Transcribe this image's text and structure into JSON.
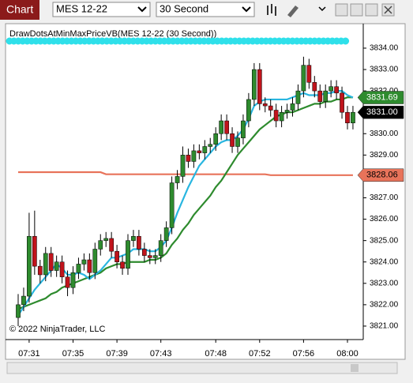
{
  "toolbar": {
    "title": "Chart",
    "instrument": "MES 12-22",
    "interval": "30 Second"
  },
  "chart_data": {
    "type": "candlestick",
    "indicator_label": "DrawDotsAtMinMaxPriceVB(MES 12-22 (30 Second))",
    "copyright": "© 2022 NinjaTrader, LLC",
    "up_color": "#2e8b2e",
    "down_color": "#c0141c",
    "categories": [
      null,
      null,
      "07:31",
      null,
      null,
      null,
      null,
      null,
      null,
      null,
      "07:35",
      null,
      null,
      null,
      null,
      null,
      null,
      null,
      "07:39",
      null,
      null,
      null,
      null,
      null,
      null,
      null,
      "07:43",
      null,
      null,
      null,
      null,
      null,
      null,
      null,
      null,
      null,
      "07:48",
      null,
      null,
      null,
      null,
      null,
      null,
      null,
      "07:52",
      null,
      null,
      null,
      null,
      null,
      null,
      null,
      "07:56",
      null,
      null,
      null,
      null,
      null,
      null,
      null,
      "08:00",
      null
    ],
    "open": [
      3821.4,
      3822.0,
      3822.4,
      3825.2,
      3823.8,
      3823.4,
      3824.4,
      3823.6,
      3824.0,
      3823.3,
      3822.8,
      3823.5,
      3823.9,
      3824.1,
      3823.5,
      3824.6,
      3825.0,
      3825.1,
      3824.5,
      3824.0,
      3823.7,
      3825.0,
      3825.2,
      3824.6,
      3824.3,
      3824.2,
      3824.3,
      3825.0,
      3825.6,
      3827.7,
      3828.0,
      3829.0,
      3828.7,
      3829.2,
      3829.1,
      3829.4,
      3829.5,
      3830.0,
      3830.6,
      3830.0,
      3829.4,
      3829.8,
      3830.6,
      3831.6,
      3833.0,
      3831.4,
      3831.3,
      3831.1,
      3830.6,
      3831.0,
      3831.1,
      3831.4,
      3832.0,
      3833.2,
      3832.4,
      3832.0,
      3831.5,
      3832.0,
      3832.2,
      3831.9,
      3831.0,
      3830.5
    ],
    "high": [
      3822.5,
      3822.8,
      3826.3,
      3826.4,
      3824.1,
      3824.7,
      3824.7,
      3824.3,
      3824.3,
      3823.6,
      3823.8,
      3824.2,
      3824.4,
      3824.4,
      3824.9,
      3825.3,
      3825.4,
      3825.4,
      3824.8,
      3824.3,
      3825.3,
      3825.5,
      3825.5,
      3824.9,
      3824.6,
      3824.6,
      3825.3,
      3825.9,
      3828.0,
      3828.3,
      3829.4,
      3829.3,
      3829.5,
      3829.5,
      3829.7,
      3829.8,
      3830.3,
      3830.9,
      3830.9,
      3830.3,
      3830.1,
      3830.9,
      3831.9,
      3833.3,
      3833.3,
      3831.7,
      3831.6,
      3831.4,
      3831.3,
      3831.4,
      3831.7,
      3832.3,
      3833.6,
      3833.5,
      3832.7,
      3832.3,
      3832.3,
      3832.5,
      3832.5,
      3832.2,
      3831.3,
      3831.3
    ],
    "low": [
      3821.0,
      3821.7,
      3822.1,
      3823.4,
      3823.0,
      3823.1,
      3823.3,
      3823.3,
      3823.0,
      3822.4,
      3822.5,
      3823.2,
      3823.6,
      3823.2,
      3823.2,
      3824.3,
      3824.7,
      3824.2,
      3823.7,
      3823.4,
      3823.4,
      3824.7,
      3824.3,
      3824.0,
      3823.9,
      3823.9,
      3824.0,
      3824.7,
      3825.3,
      3827.4,
      3827.7,
      3828.4,
      3828.4,
      3828.8,
      3828.8,
      3829.1,
      3829.2,
      3829.7,
      3829.7,
      3829.1,
      3829.1,
      3829.5,
      3830.3,
      3831.3,
      3831.1,
      3831.0,
      3830.8,
      3830.3,
      3830.3,
      3830.7,
      3830.8,
      3831.1,
      3831.7,
      3832.1,
      3831.7,
      3831.2,
      3831.2,
      3831.7,
      3831.6,
      3830.7,
      3830.2,
      3830.2
    ],
    "close": [
      3822.0,
      3822.4,
      3825.2,
      3823.8,
      3823.4,
      3824.4,
      3823.6,
      3824.0,
      3823.3,
      3822.8,
      3823.5,
      3823.9,
      3824.1,
      3823.5,
      3824.6,
      3825.0,
      3825.1,
      3824.5,
      3824.0,
      3823.7,
      3825.0,
      3825.2,
      3824.6,
      3824.3,
      3824.2,
      3824.3,
      3825.0,
      3825.6,
      3827.7,
      3828.0,
      3829.0,
      3828.7,
      3829.2,
      3829.1,
      3829.4,
      3829.5,
      3830.0,
      3830.6,
      3830.0,
      3829.4,
      3829.8,
      3830.6,
      3831.6,
      3833.0,
      3831.4,
      3831.3,
      3831.1,
      3830.6,
      3831.0,
      3831.1,
      3831.4,
      3832.0,
      3833.2,
      3832.4,
      3832.0,
      3831.5,
      3832.0,
      3832.2,
      3831.9,
      3831.0,
      3830.5,
      3831.0
    ],
    "lines": [
      {
        "color": "#e8735a",
        "values": [
          3828.2,
          3828.2,
          3828.2,
          3828.2,
          3828.2,
          3828.2,
          3828.2,
          3828.2,
          3828.2,
          3828.2,
          3828.2,
          3828.2,
          3828.2,
          3828.2,
          3828.2,
          3828.2,
          3828.1,
          3828.1,
          3828.1,
          3828.1,
          3828.1,
          3828.1,
          3828.1,
          3828.1,
          3828.1,
          3828.1,
          3828.1,
          3828.1,
          3828.1,
          3828.1,
          3828.1,
          3828.1,
          3828.1,
          3828.1,
          3828.1,
          3828.1,
          3828.1,
          3828.1,
          3828.1,
          3828.1,
          3828.1,
          3828.1,
          3828.1,
          3828.1,
          3828.1,
          3828.1,
          3828.06,
          3828.06,
          3828.06,
          3828.06,
          3828.06,
          3828.06,
          3828.06,
          3828.06,
          3828.06,
          3828.06,
          3828.06,
          3828.06,
          3828.06,
          3828.06,
          3828.06,
          3828.06
        ]
      },
      {
        "color": "#2e8b2e",
        "values": [
          3821.8,
          3821.9,
          3822.0,
          3822.1,
          3822.2,
          3822.3,
          3822.5,
          3822.6,
          3822.8,
          3822.9,
          3823.0,
          3823.1,
          3823.2,
          3823.3,
          3823.4,
          3823.5,
          3823.7,
          3823.8,
          3823.9,
          3823.9,
          3824.0,
          3824.0,
          3824.0,
          3824.0,
          3824.1,
          3824.1,
          3824.2,
          3824.4,
          3824.8,
          3825.1,
          3825.5,
          3825.8,
          3826.2,
          3826.5,
          3826.8,
          3827.1,
          3827.5,
          3827.8,
          3828.2,
          3828.6,
          3829.0,
          3829.3,
          3829.6,
          3829.9,
          3830.2,
          3830.4,
          3830.6,
          3830.8,
          3830.9,
          3831.0,
          3831.0,
          3831.1,
          3831.2,
          3831.3,
          3831.4,
          3831.4,
          3831.5,
          3831.5,
          3831.6,
          3831.6,
          3831.7,
          3831.7
        ]
      },
      {
        "color": "#29b6e0",
        "values": [
          3821.5,
          3821.9,
          3822.3,
          3822.7,
          3823.0,
          3823.3,
          3823.6,
          3823.9,
          3823.7,
          3823.4,
          3823.4,
          3823.5,
          3823.4,
          3823.2,
          3823.4,
          3823.6,
          3823.9,
          3824.2,
          3824.2,
          3824.3,
          3824.4,
          3824.6,
          3824.6,
          3824.6,
          3824.5,
          3824.5,
          3824.7,
          3825.0,
          3825.6,
          3826.3,
          3826.9,
          3827.5,
          3828.0,
          3828.5,
          3828.8,
          3829.1,
          3829.4,
          3829.6,
          3829.7,
          3829.7,
          3829.9,
          3830.2,
          3830.7,
          3831.3,
          3831.5,
          3831.6,
          3831.6,
          3831.6,
          3831.6,
          3831.6,
          3831.7,
          3831.8,
          3831.9,
          3831.8,
          3831.8,
          3831.8,
          3831.9,
          3831.9,
          3832.0,
          3832.0,
          3831.8,
          3831.69
        ]
      }
    ],
    "price_markers": [
      {
        "value": 3831.69,
        "label": "3831.69",
        "color": "#2e8b2e",
        "text_color": "#ffffff"
      },
      {
        "value": 3831,
        "label": "3831.00",
        "color": "#000000",
        "text_color": "#ffffff"
      },
      {
        "value": 3828.06,
        "label": "3828.06",
        "color": "#e8735a",
        "text_color": "#000000"
      }
    ],
    "ylim": [
      3820.37,
      3835.07
    ],
    "yticks": [
      {
        "value": 3821,
        "label": "3821.00"
      },
      {
        "value": 3822,
        "label": "3822.00"
      },
      {
        "value": 3823,
        "label": "3823.00"
      },
      {
        "value": 3824,
        "label": "3824.00"
      },
      {
        "value": 3825,
        "label": "3825.00"
      },
      {
        "value": 3826,
        "label": "3826.00"
      },
      {
        "value": 3827,
        "label": "3827.00"
      },
      {
        "value": 3828,
        "label": "3828.00"
      },
      {
        "value": 3829,
        "label": "3829.00"
      },
      {
        "value": 3830,
        "label": "3830.00"
      },
      {
        "value": 3831,
        "label": "3831.00"
      },
      {
        "value": 3832,
        "label": "3832.00"
      },
      {
        "value": 3833,
        "label": "3833.00"
      },
      {
        "value": 3834,
        "label": "3834.00"
      }
    ]
  }
}
